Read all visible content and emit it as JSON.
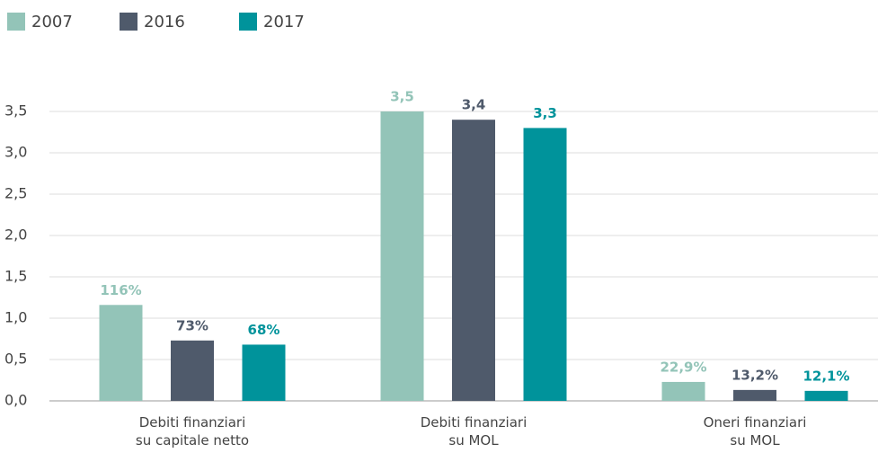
{
  "chart_data": {
    "type": "bar",
    "categories": [
      "Debiti finanziari\nsu capitale netto",
      "Debiti finanziari\nsu MOL",
      "Oneri finanziari\nsu MOL"
    ],
    "series": [
      {
        "name": "2007",
        "color": "#93c4b8",
        "values": [
          1.16,
          3.5,
          0.229
        ],
        "value_labels": [
          "116%",
          "3,5",
          "22,9%"
        ]
      },
      {
        "name": "2016",
        "color": "#4f5a6b",
        "values": [
          0.73,
          3.4,
          0.132
        ],
        "value_labels": [
          "73%",
          "3,4",
          "13,2%"
        ]
      },
      {
        "name": "2017",
        "color": "#00939b",
        "values": [
          0.68,
          3.3,
          0.121
        ],
        "value_labels": [
          "68%",
          "3,3",
          "12,1%"
        ]
      }
    ],
    "ylim": [
      0,
      3.5
    ],
    "yticks": [
      {
        "value": 0,
        "label": "0,0"
      },
      {
        "value": 0.5,
        "label": "0,5"
      },
      {
        "value": 1,
        "label": "1,0"
      },
      {
        "value": 1.5,
        "label": "1,5"
      },
      {
        "value": 2,
        "label": "2,0"
      },
      {
        "value": 2.5,
        "label": "2,5"
      },
      {
        "value": 3,
        "label": "3,0"
      },
      {
        "value": 3.5,
        "label": "3,5"
      }
    ],
    "grid": true,
    "legend": "top-left"
  }
}
